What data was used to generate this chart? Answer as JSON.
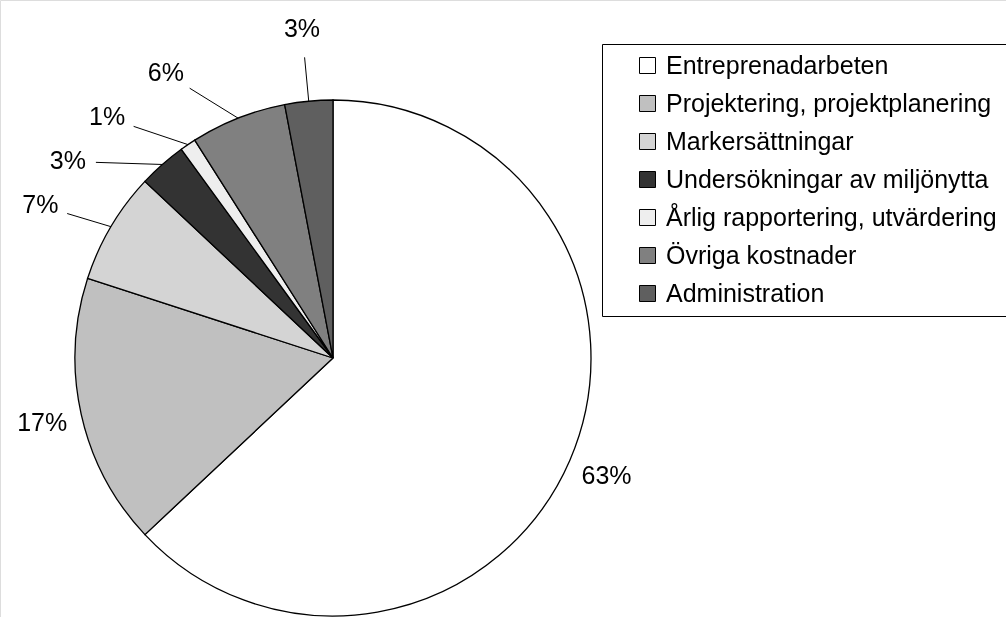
{
  "chart_data": {
    "type": "pie",
    "categories": [
      "Entreprenadarbeten",
      "Projektering, projektplanering",
      "Markersättningar",
      "Undersökningar av miljönytta",
      "Årlig rapportering, utvärdering",
      "Övriga kostnader",
      "Administration"
    ],
    "values": [
      63,
      17,
      7,
      3,
      1,
      6,
      3
    ],
    "colors": [
      "#ffffff",
      "#c0c0c0",
      "#d4d4d4",
      "#333333",
      "#eeeeee",
      "#808080",
      "#5f5f5f"
    ],
    "value_labels": [
      "63%",
      "17%",
      "7%",
      "3%",
      "1%",
      "6%",
      "3%"
    ],
    "legend": "top right"
  }
}
